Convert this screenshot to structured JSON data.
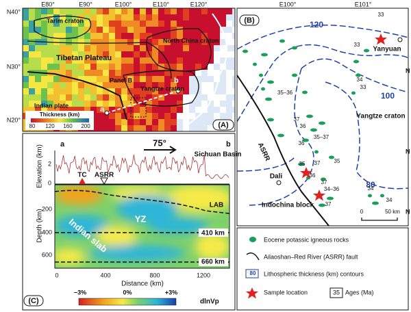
{
  "panel_a": {
    "label": "(A)",
    "lat_labels": [
      "N40°",
      "N30°",
      "N20°"
    ],
    "lon_labels": [
      "E80°",
      "E90°",
      "E100°",
      "E110°",
      "E120°"
    ],
    "regions": [
      "Tarim craton",
      "Tibetan Plateau",
      "North China craton",
      "Yangtze craton",
      "Indian plate"
    ],
    "panel_b_label": "Panel B",
    "profile_ends": [
      "a",
      "b"
    ],
    "colorbar": {
      "title": "Thickness (km)",
      "ticks": [
        "80",
        "120",
        "160",
        "200"
      ]
    }
  },
  "panel_b": {
    "label": "(B)",
    "lon_labels": [
      "E100°",
      "E101°"
    ],
    "lat_labels": [
      "N",
      "N",
      "N"
    ],
    "contours": [
      "120",
      "100",
      "80"
    ],
    "places": [
      "Yanyuan",
      "Yangtze craton",
      "ASRR",
      "Dali",
      "Indochina block"
    ],
    "ages": [
      "33",
      "33",
      "35–36",
      "34",
      "33",
      "37",
      "36",
      "35–37",
      "36",
      "35",
      "35",
      "37",
      "36",
      "37",
      "34–36",
      "37",
      "34",
      "34"
    ],
    "scale": [
      "0",
      "50 km"
    ]
  },
  "panel_c": {
    "label": "(C)",
    "ends": [
      "a",
      "b"
    ],
    "dip": "75°",
    "basin": "Sichuan Basin",
    "elevation_axis": "Elevation (km)",
    "elevation_ticks": [
      "2",
      "0"
    ],
    "markers": [
      "TC",
      "ASRR"
    ],
    "depth_axis": "Depth (km)",
    "depth_ticks": [
      "200",
      "400",
      "600"
    ],
    "features": [
      "LAB",
      "YZ",
      "Indian slab",
      "410 km",
      "660 km"
    ],
    "distance_ticks": [
      "0",
      "400",
      "800",
      "1200"
    ],
    "distance_axis": "Distance (km)",
    "colorbar": {
      "ticks": [
        "−3%",
        "0%",
        "+3%"
      ],
      "title": "dlnVp"
    }
  },
  "legend": {
    "items": [
      "Eocene potassic igneous rocks",
      "Ailaoshan–Red River (ASRR) fault",
      "Lithospheric thickness (km) contours",
      "Sample location",
      "Ages (Ma)"
    ],
    "contour_icon": "80",
    "age_icon": "35"
  }
}
